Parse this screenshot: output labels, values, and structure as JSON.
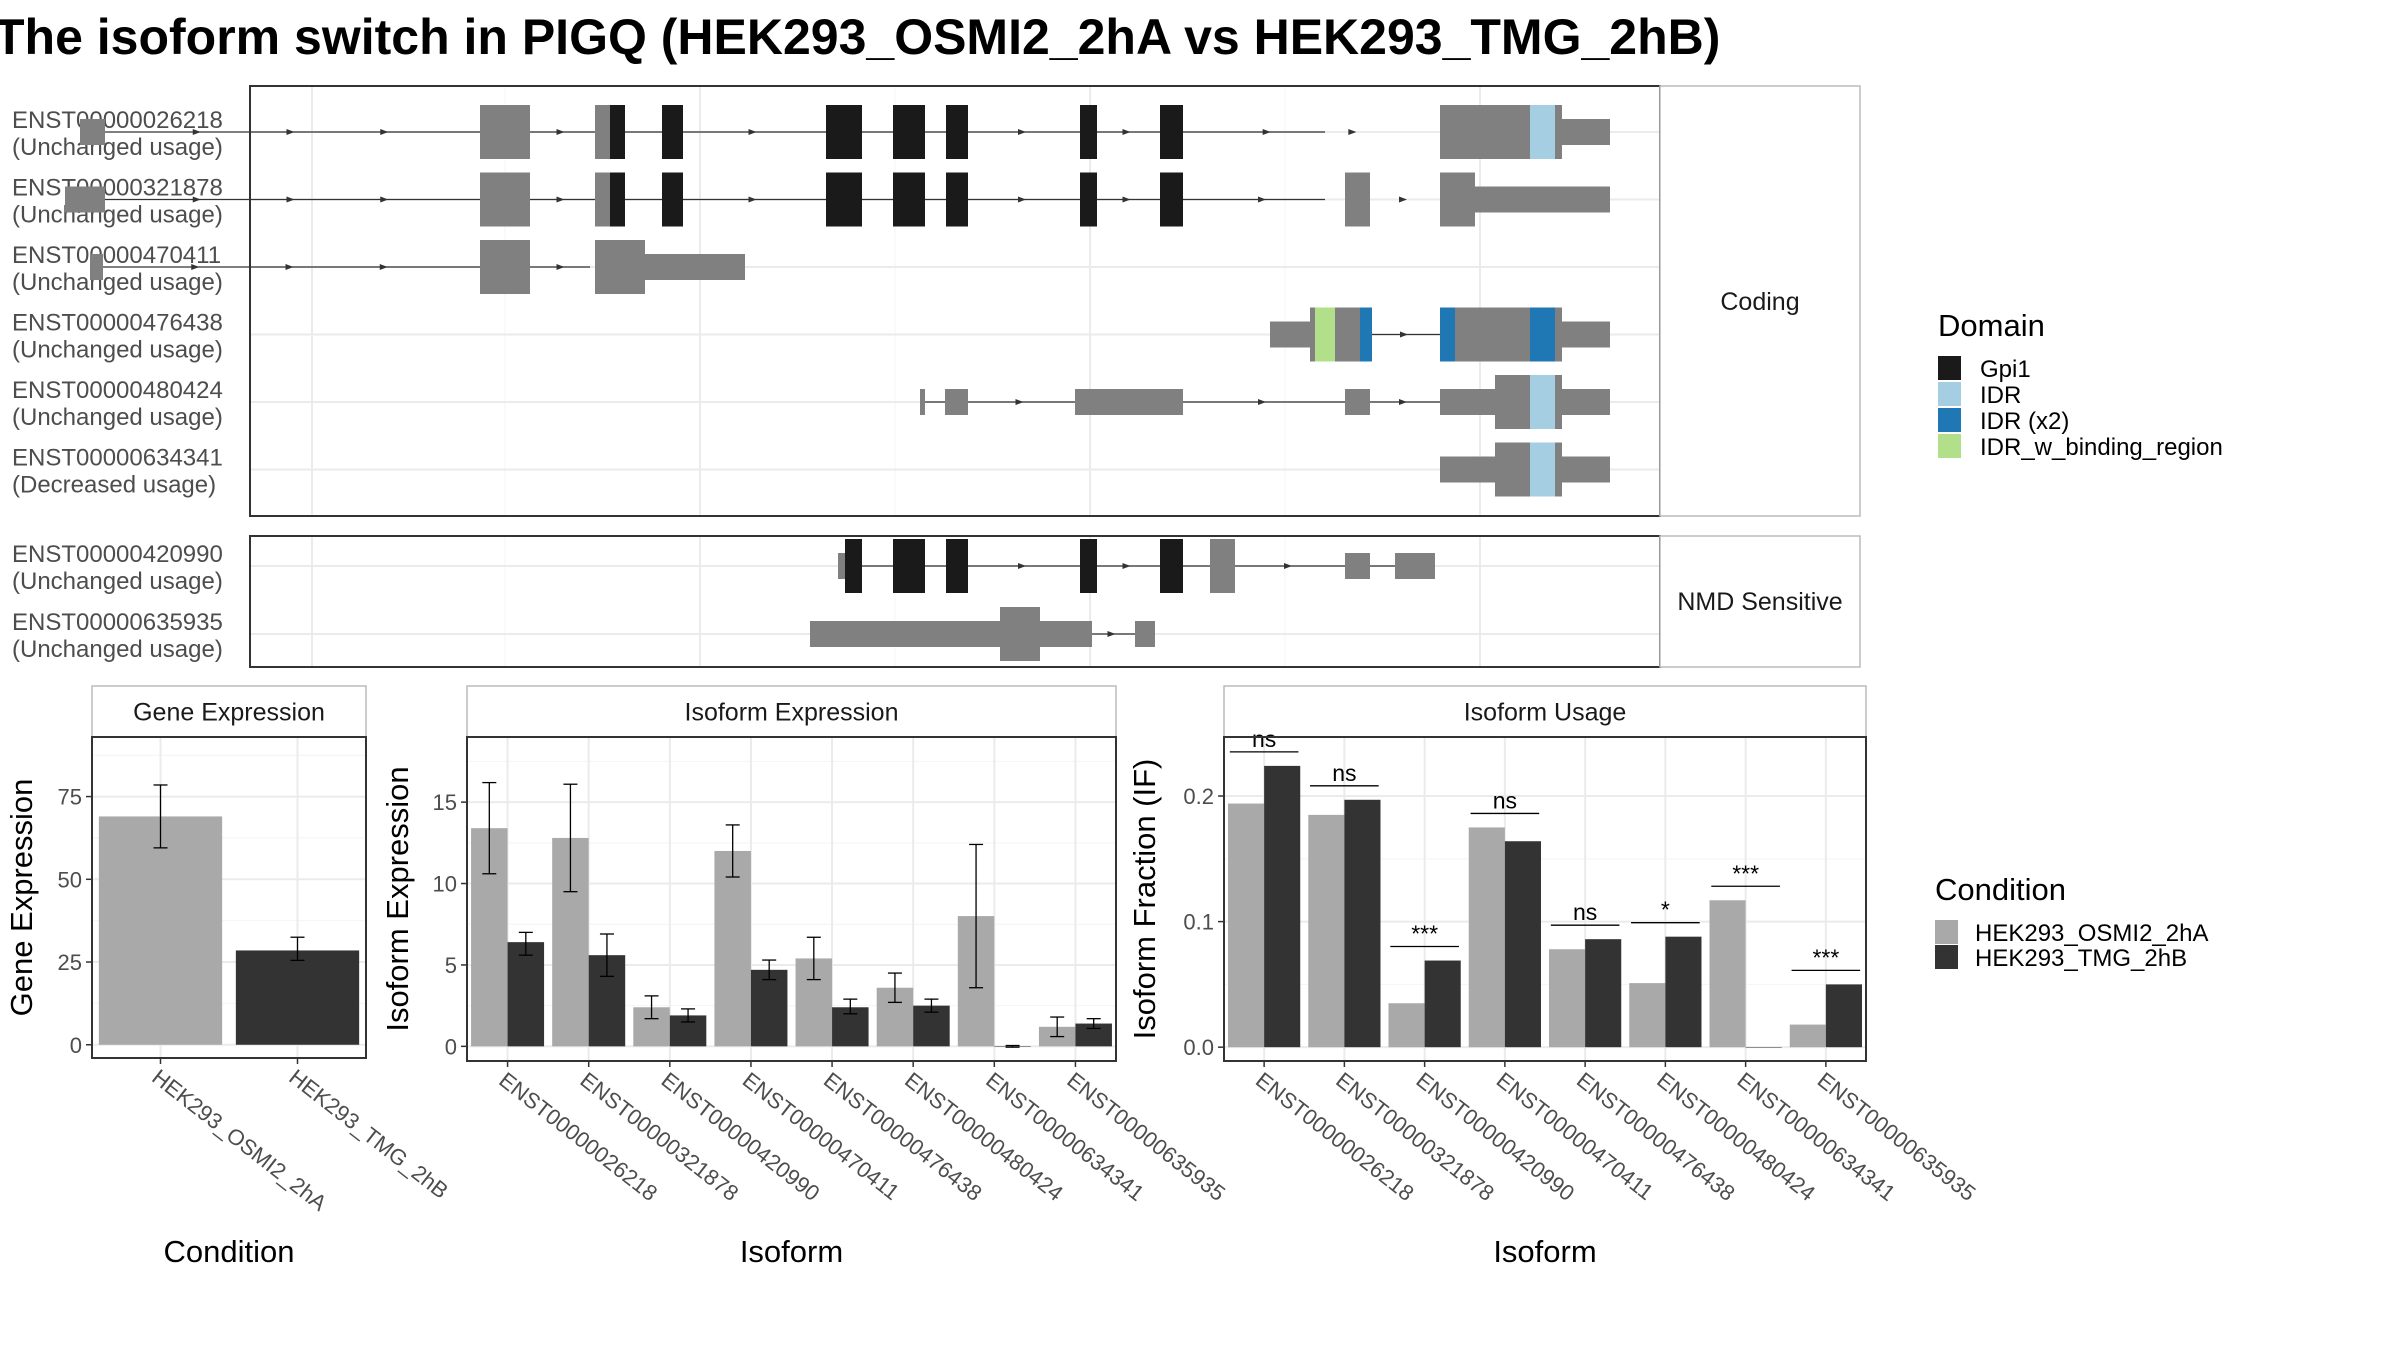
{
  "title": "The isoform switch in PIGQ (HEK293_OSMI2_2hA vs HEK293_TMG_2hB)",
  "colors": {
    "gpi1": "#1a1a1a",
    "idr": "#a6cee3",
    "idr_x2": "#1f78b4",
    "idr_w_binding_region": "#b2df8a",
    "exon": "#808080",
    "cond_a": "#a9a9a9",
    "cond_b": "#333333"
  },
  "legend_domain": {
    "title": "Domain",
    "items": [
      {
        "label": "Gpi1",
        "key": "gpi1"
      },
      {
        "label": "IDR",
        "key": "idr"
      },
      {
        "label": "IDR (x2)",
        "key": "idr_x2"
      },
      {
        "label": "IDR_w_binding_region",
        "key": "idr_w_binding_region"
      }
    ]
  },
  "legend_condition": {
    "title": "Condition",
    "items": [
      {
        "label": "HEK293_OSMI2_2hA",
        "key": "cond_a"
      },
      {
        "label": "HEK293_TMG_2hB",
        "key": "cond_b"
      }
    ]
  },
  "structure": {
    "coding_label": "Coding",
    "nmd_label": "NMD Sensitive",
    "coding": [
      {
        "id": "ENST00000026218",
        "usage": "(Unchanged usage)",
        "span": [
          80,
          1325
        ],
        "exons": [
          [
            80,
            105,
            "s"
          ],
          [
            480,
            530,
            "t"
          ],
          [
            595,
            610,
            "t"
          ],
          [
            610,
            625,
            "d:gpi1"
          ],
          [
            662,
            683,
            "d:gpi1"
          ],
          [
            826,
            862,
            "d:gpi1"
          ],
          [
            893,
            925,
            "d:gpi1"
          ],
          [
            946,
            968,
            "d:gpi1"
          ],
          [
            1080,
            1097,
            "d:gpi1"
          ],
          [
            1160,
            1183,
            "d:gpi1"
          ],
          [
            1440,
            1530,
            "t"
          ],
          [
            1530,
            1555,
            "d:idr"
          ],
          [
            1555,
            1562,
            "t"
          ],
          [
            1562,
            1610,
            "s"
          ]
        ]
      },
      {
        "id": "ENST00000321878",
        "usage": "(Unchanged usage)",
        "span": [
          65,
          1325
        ],
        "exons": [
          [
            65,
            105,
            "s"
          ],
          [
            480,
            530,
            "t"
          ],
          [
            595,
            610,
            "t"
          ],
          [
            610,
            625,
            "d:gpi1"
          ],
          [
            662,
            683,
            "d:gpi1"
          ],
          [
            826,
            862,
            "d:gpi1"
          ],
          [
            893,
            925,
            "d:gpi1"
          ],
          [
            946,
            968,
            "d:gpi1"
          ],
          [
            1080,
            1097,
            "d:gpi1"
          ],
          [
            1160,
            1183,
            "d:gpi1"
          ],
          [
            1345,
            1370,
            "t"
          ],
          [
            1440,
            1475,
            "t"
          ],
          [
            1475,
            1610,
            "s"
          ]
        ]
      },
      {
        "id": "ENST00000470411",
        "usage": "(Unchanged usage)",
        "span": [
          90,
          590
        ],
        "exons": [
          [
            90,
            103,
            "s"
          ],
          [
            480,
            530,
            "t"
          ],
          [
            595,
            645,
            "t"
          ],
          [
            645,
            745,
            "s"
          ]
        ]
      },
      {
        "id": "ENST00000476438",
        "usage": "(Unchanged usage)",
        "span": [
          1270,
          1610
        ],
        "exons": [
          [
            1270,
            1310,
            "s"
          ],
          [
            1310,
            1315,
            "t"
          ],
          [
            1315,
            1335,
            "d:idr_w_binding_region"
          ],
          [
            1335,
            1360,
            "t"
          ],
          [
            1360,
            1372,
            "d:idr_x2"
          ],
          [
            1440,
            1455,
            "d:idr_x2"
          ],
          [
            1455,
            1530,
            "t"
          ],
          [
            1530,
            1555,
            "d:idr_x2"
          ],
          [
            1555,
            1562,
            "t"
          ],
          [
            1562,
            1610,
            "s"
          ]
        ]
      },
      {
        "id": "ENST00000480424",
        "usage": "(Unchanged usage)",
        "span": [
          920,
          1610
        ],
        "exons": [
          [
            920,
            925,
            "s"
          ],
          [
            945,
            968,
            "s"
          ],
          [
            1075,
            1183,
            "s"
          ],
          [
            1345,
            1370,
            "s"
          ],
          [
            1440,
            1495,
            "s"
          ],
          [
            1495,
            1530,
            "t"
          ],
          [
            1530,
            1555,
            "d:idr"
          ],
          [
            1555,
            1562,
            "t"
          ],
          [
            1562,
            1610,
            "s"
          ]
        ]
      },
      {
        "id": "ENST00000634341",
        "usage": "(Decreased usage)",
        "span": [
          1440,
          1610
        ],
        "exons": [
          [
            1440,
            1495,
            "s"
          ],
          [
            1495,
            1530,
            "t"
          ],
          [
            1530,
            1555,
            "d:idr"
          ],
          [
            1555,
            1562,
            "t"
          ],
          [
            1562,
            1610,
            "s"
          ]
        ]
      }
    ],
    "nmd": [
      {
        "id": "ENST00000420990",
        "usage": "(Unchanged usage)",
        "span": [
          838,
          1435
        ],
        "exons": [
          [
            838,
            845,
            "s"
          ],
          [
            845,
            862,
            "d:gpi1"
          ],
          [
            893,
            925,
            "d:gpi1"
          ],
          [
            946,
            968,
            "d:gpi1"
          ],
          [
            1080,
            1097,
            "d:gpi1"
          ],
          [
            1160,
            1183,
            "d:gpi1"
          ],
          [
            1210,
            1235,
            "t"
          ],
          [
            1345,
            1350,
            "s"
          ],
          [
            1350,
            1370,
            "s"
          ],
          [
            1395,
            1435,
            "s"
          ]
        ]
      },
      {
        "id": "ENST00000635935",
        "usage": "(Unchanged usage)",
        "span": [
          810,
          1155
        ],
        "exons": [
          [
            810,
            1000,
            "s"
          ],
          [
            1000,
            1040,
            "t"
          ],
          [
            1040,
            1092,
            "s"
          ],
          [
            1135,
            1155,
            "s"
          ]
        ]
      }
    ]
  },
  "chart_data": [
    {
      "type": "bar",
      "title": "Gene Expression",
      "xlabel": "Condition",
      "ylabel": "Gene Expression",
      "categories": [
        "HEK293_OSMI2_2hA",
        "HEK293_TMG_2hB"
      ],
      "values": [
        69,
        28.5
      ],
      "errors": [
        [
          59.5,
          78.5
        ],
        [
          25.5,
          32.5
        ]
      ],
      "ylim": [
        -4,
        93
      ],
      "yticks": [
        "0",
        "25",
        "50",
        "75"
      ],
      "grid": true
    },
    {
      "type": "bar",
      "title": "Isoform Expression",
      "xlabel": "Isoform",
      "ylabel": "Isoform Expression",
      "categories": [
        "ENST00000026218",
        "ENST00000321878",
        "ENST00000420990",
        "ENST00000470411",
        "ENST00000476438",
        "ENST00000480424",
        "ENST00000634341",
        "ENST00000635935"
      ],
      "ylim": [
        -0.9,
        19
      ],
      "yticks": [
        "0",
        "5",
        "10",
        "15"
      ],
      "grid": true,
      "series": [
        {
          "name": "HEK293_OSMI2_2hA",
          "values": [
            13.4,
            12.8,
            2.4,
            12.0,
            5.4,
            3.6,
            8.0,
            1.2
          ],
          "errors": [
            [
              10.6,
              16.2
            ],
            [
              9.5,
              16.1
            ],
            [
              1.7,
              3.1
            ],
            [
              10.4,
              13.6
            ],
            [
              4.1,
              6.7
            ],
            [
              2.7,
              4.5
            ],
            [
              3.6,
              12.4
            ],
            [
              0.6,
              1.8
            ]
          ]
        },
        {
          "name": "HEK293_TMG_2hB",
          "values": [
            6.4,
            5.6,
            1.9,
            4.7,
            2.4,
            2.5,
            0.0,
            1.4
          ],
          "errors": [
            [
              5.6,
              7.0
            ],
            [
              4.3,
              6.9
            ],
            [
              1.5,
              2.3
            ],
            [
              4.1,
              5.3
            ],
            [
              2.0,
              2.9
            ],
            [
              2.1,
              2.9
            ],
            [
              -0.05,
              0.05
            ],
            [
              1.1,
              1.7
            ]
          ]
        }
      ]
    },
    {
      "type": "bar",
      "title": "Isoform Usage",
      "xlabel": "Isoform",
      "ylabel": "Isoform Fraction (IF)",
      "categories": [
        "ENST00000026218",
        "ENST00000321878",
        "ENST00000420990",
        "ENST00000470411",
        "ENST00000476438",
        "ENST00000480424",
        "ENST00000634341",
        "ENST00000635935"
      ],
      "ylim": [
        -0.011,
        0.247
      ],
      "yticks": [
        "0.0",
        "0.1",
        "0.2"
      ],
      "grid": true,
      "series": [
        {
          "name": "HEK293_OSMI2_2hA",
          "values": [
            0.194,
            0.185,
            0.035,
            0.175,
            0.078,
            0.051,
            0.117,
            0.018
          ]
        },
        {
          "name": "HEK293_TMG_2hB",
          "values": [
            0.224,
            0.197,
            0.069,
            0.164,
            0.086,
            0.088,
            0.0,
            0.05
          ]
        }
      ],
      "significance": [
        "ns",
        "ns",
        "***",
        "ns",
        "ns",
        "*",
        "***",
        "***"
      ]
    }
  ]
}
